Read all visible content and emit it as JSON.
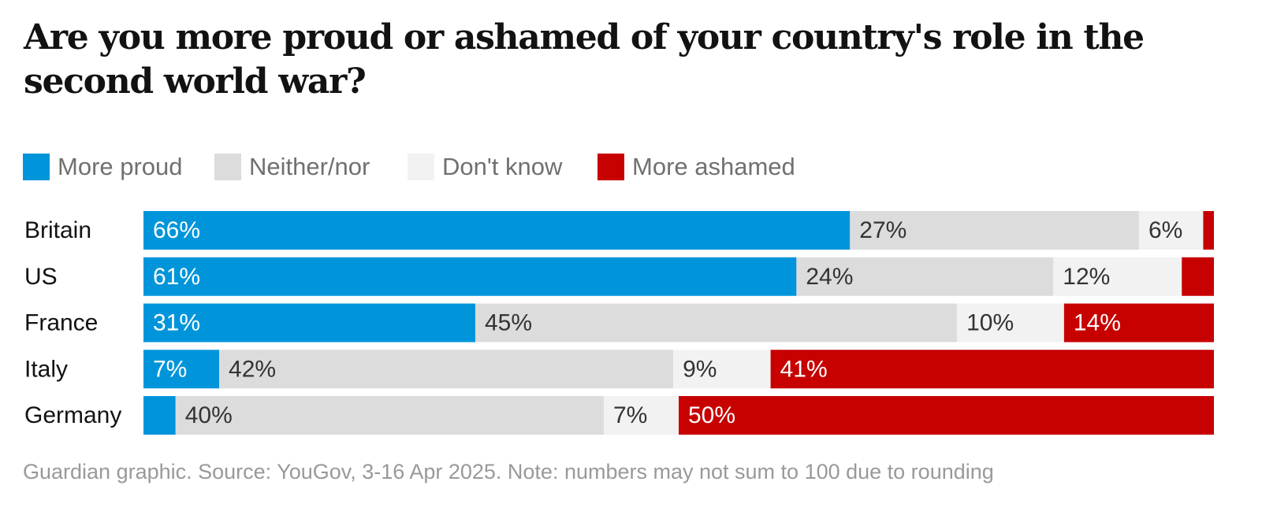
{
  "title": "Are you more proud or ashamed of your country's role in the second world war?",
  "legend": [
    {
      "label": "More proud",
      "color": "#0095da"
    },
    {
      "label": "Neither/nor",
      "color": "#dcdcdc"
    },
    {
      "label": "Don't know",
      "color": "#f2f2f2"
    },
    {
      "label": "More ashamed",
      "color": "#c70000"
    }
  ],
  "source": "Guardian graphic. Source: YouGov, 3-16 Apr 2025. Note: numbers may not sum to 100 due to rounding",
  "chart_data": {
    "type": "bar",
    "orientation": "horizontal",
    "stacked": true,
    "categories": [
      "Britain",
      "US",
      "France",
      "Italy",
      "Germany"
    ],
    "series": [
      {
        "name": "More proud",
        "color": "#0095da",
        "label_color": "#ffffff",
        "values": [
          66,
          61,
          31,
          7,
          3
        ],
        "labels": [
          "66%",
          "61%",
          "31%",
          "7%",
          ""
        ]
      },
      {
        "name": "Neither/nor",
        "color": "#dcdcdc",
        "label_color": "#333333",
        "values": [
          27,
          24,
          45,
          42,
          40
        ],
        "labels": [
          "27%",
          "24%",
          "45%",
          "42%",
          "40%"
        ]
      },
      {
        "name": "Don't know",
        "color": "#f2f2f2",
        "label_color": "#333333",
        "values": [
          6,
          12,
          10,
          9,
          7
        ],
        "labels": [
          "6%",
          "12%",
          "10%",
          "9%",
          "7%"
        ]
      },
      {
        "name": "More ashamed",
        "color": "#c70000",
        "label_color": "#ffffff",
        "values": [
          1,
          3,
          14,
          41,
          50
        ],
        "labels": [
          "",
          "",
          "14%",
          "41%",
          "50%"
        ]
      }
    ],
    "xlim": [
      0,
      100
    ],
    "grid": false,
    "legend_position": "top"
  }
}
